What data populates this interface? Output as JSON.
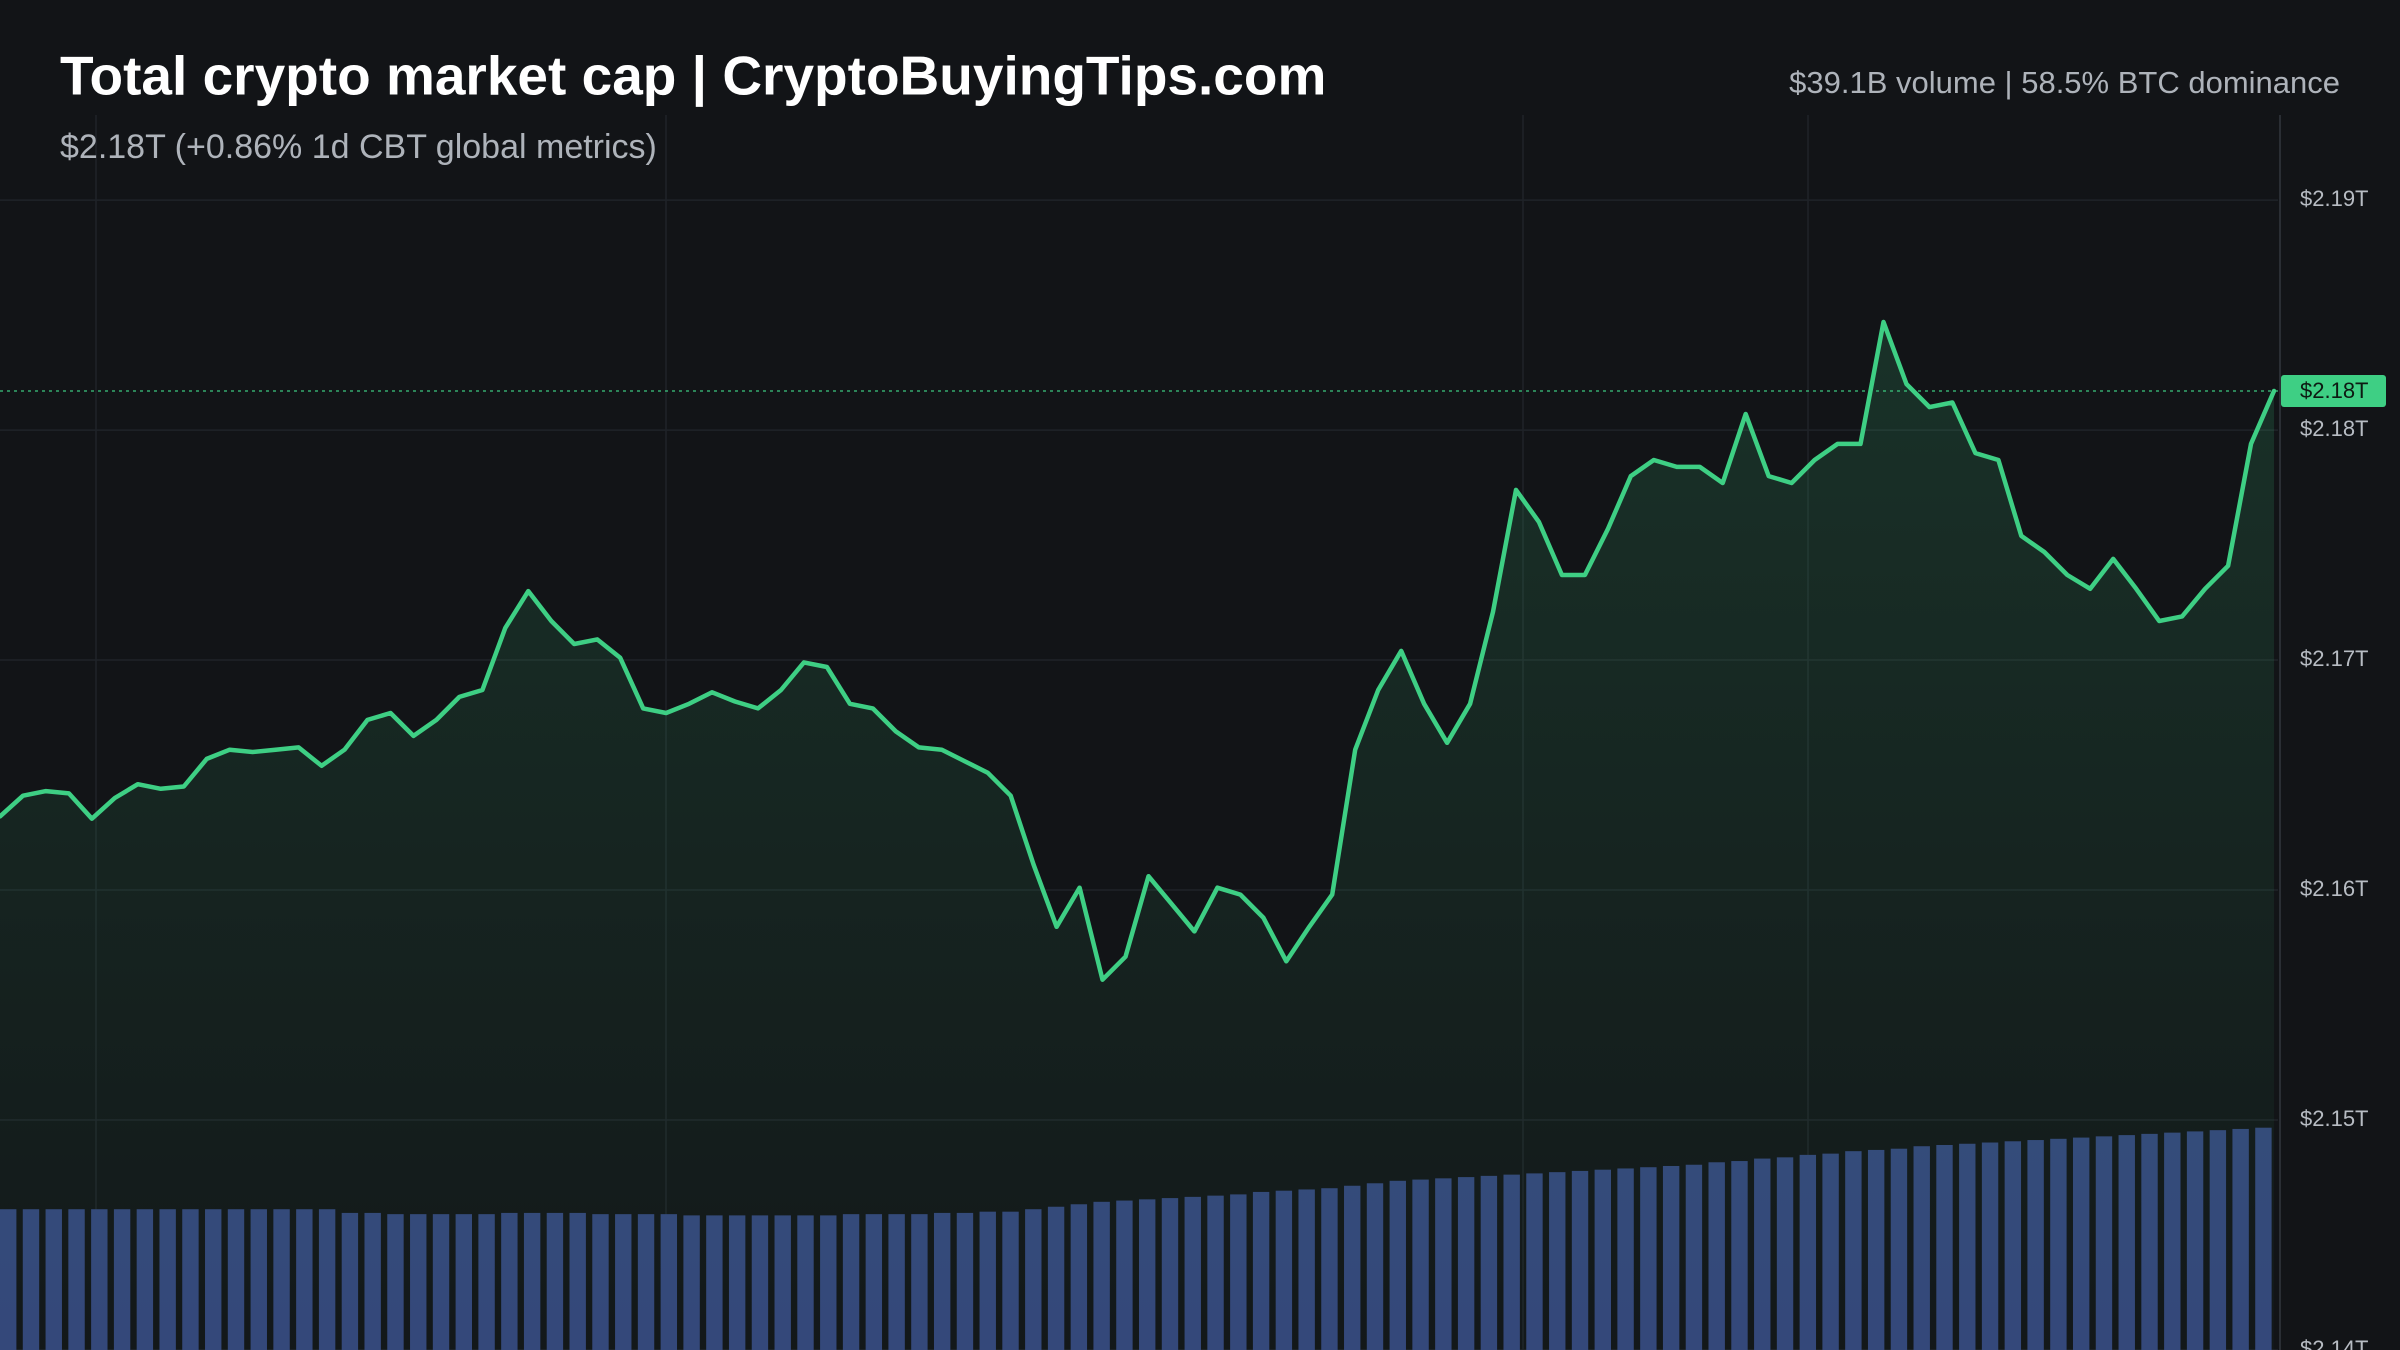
{
  "chart_data": {
    "type": "area",
    "title": "Total crypto market cap | CryptoBuyingTips.com",
    "subtitle": "$2.18T (+0.86% 1d CBT global metrics)",
    "annotation": "$39.1B volume | 58.5% BTC dominance",
    "color": "#3ecf84",
    "values": [
      2.1632,
      2.1641,
      2.1643,
      2.1642,
      2.1631,
      2.164,
      2.1646,
      2.1644,
      2.1645,
      2.1657,
      2.1661,
      2.166,
      2.1661,
      2.1662,
      2.1654,
      2.1661,
      2.1674,
      2.1677,
      2.1667,
      2.1674,
      2.1684,
      2.1687,
      2.1714,
      2.173,
      2.1717,
      2.1707,
      2.1709,
      2.1701,
      2.1679,
      2.1677,
      2.1681,
      2.1686,
      2.1682,
      2.1679,
      2.1687,
      2.1699,
      2.1697,
      2.1681,
      2.1679,
      2.1669,
      2.1662,
      2.1661,
      2.1656,
      2.1651,
      2.1641,
      2.1611,
      2.1584,
      2.1601,
      2.1561,
      2.1571,
      2.1606,
      2.1594,
      2.1582,
      2.1601,
      2.1598,
      2.1588,
      2.1569,
      2.1584,
      2.1598,
      2.1661,
      2.1687,
      2.1704,
      2.1681,
      2.1664,
      2.1681,
      2.1721,
      2.1774,
      2.176,
      2.1737,
      2.1737,
      2.1757,
      2.178,
      2.1787,
      2.1784,
      2.1784,
      2.1777,
      2.1807,
      2.178,
      2.1777,
      2.1787,
      2.1794,
      2.1794,
      2.1847,
      2.182,
      2.181,
      2.1812,
      2.179,
      2.1787,
      2.1754,
      2.1747,
      2.1737,
      2.1731,
      2.1744,
      2.1731,
      2.1717,
      2.1719,
      2.1731,
      2.1741,
      2.1794,
      2.1817
    ],
    "ylim": [
      2.14,
      2.1937
    ],
    "yticks": [
      {
        "value": 2.14,
        "label": "$2.14T"
      },
      {
        "value": 2.15,
        "label": "$2.15T"
      },
      {
        "value": 2.16,
        "label": "$2.16T"
      },
      {
        "value": 2.17,
        "label": "$2.17T"
      },
      {
        "value": 2.18,
        "label": "$2.18T"
      },
      {
        "value": 2.19,
        "label": "$2.19T"
      }
    ],
    "grid": true,
    "last_value": {
      "value": 2.1817,
      "label": "$2.18T"
    },
    "volume_color": "#34457a",
    "volume_values": [
      11.4,
      11.4,
      11.4,
      11.4,
      11.4,
      11.4,
      11.4,
      11.4,
      11.4,
      11.4,
      11.4,
      11.4,
      11.4,
      11.4,
      11.4,
      11.1,
      11.1,
      11.0,
      11.0,
      11.0,
      11.0,
      11.0,
      11.1,
      11.1,
      11.1,
      11.1,
      11.0,
      11.0,
      11.0,
      11.0,
      10.9,
      10.9,
      10.9,
      10.9,
      10.9,
      10.9,
      10.9,
      11.0,
      11.0,
      11.0,
      11.0,
      11.1,
      11.1,
      11.2,
      11.2,
      11.4,
      11.6,
      11.8,
      12.0,
      12.1,
      12.2,
      12.3,
      12.4,
      12.5,
      12.6,
      12.8,
      12.9,
      13.0,
      13.1,
      13.3,
      13.5,
      13.7,
      13.8,
      13.9,
      14.0,
      14.1,
      14.2,
      14.3,
      14.4,
      14.5,
      14.6,
      14.7,
      14.8,
      14.9,
      15.0,
      15.2,
      15.3,
      15.5,
      15.6,
      15.8,
      15.9,
      16.1,
      16.2,
      16.3,
      16.5,
      16.6,
      16.7,
      16.8,
      16.9,
      17.0,
      17.1,
      17.2,
      17.3,
      17.4,
      17.5,
      17.6,
      17.7,
      17.8,
      17.9,
      18.0
    ],
    "y2lim": [
      0,
      100
    ]
  }
}
